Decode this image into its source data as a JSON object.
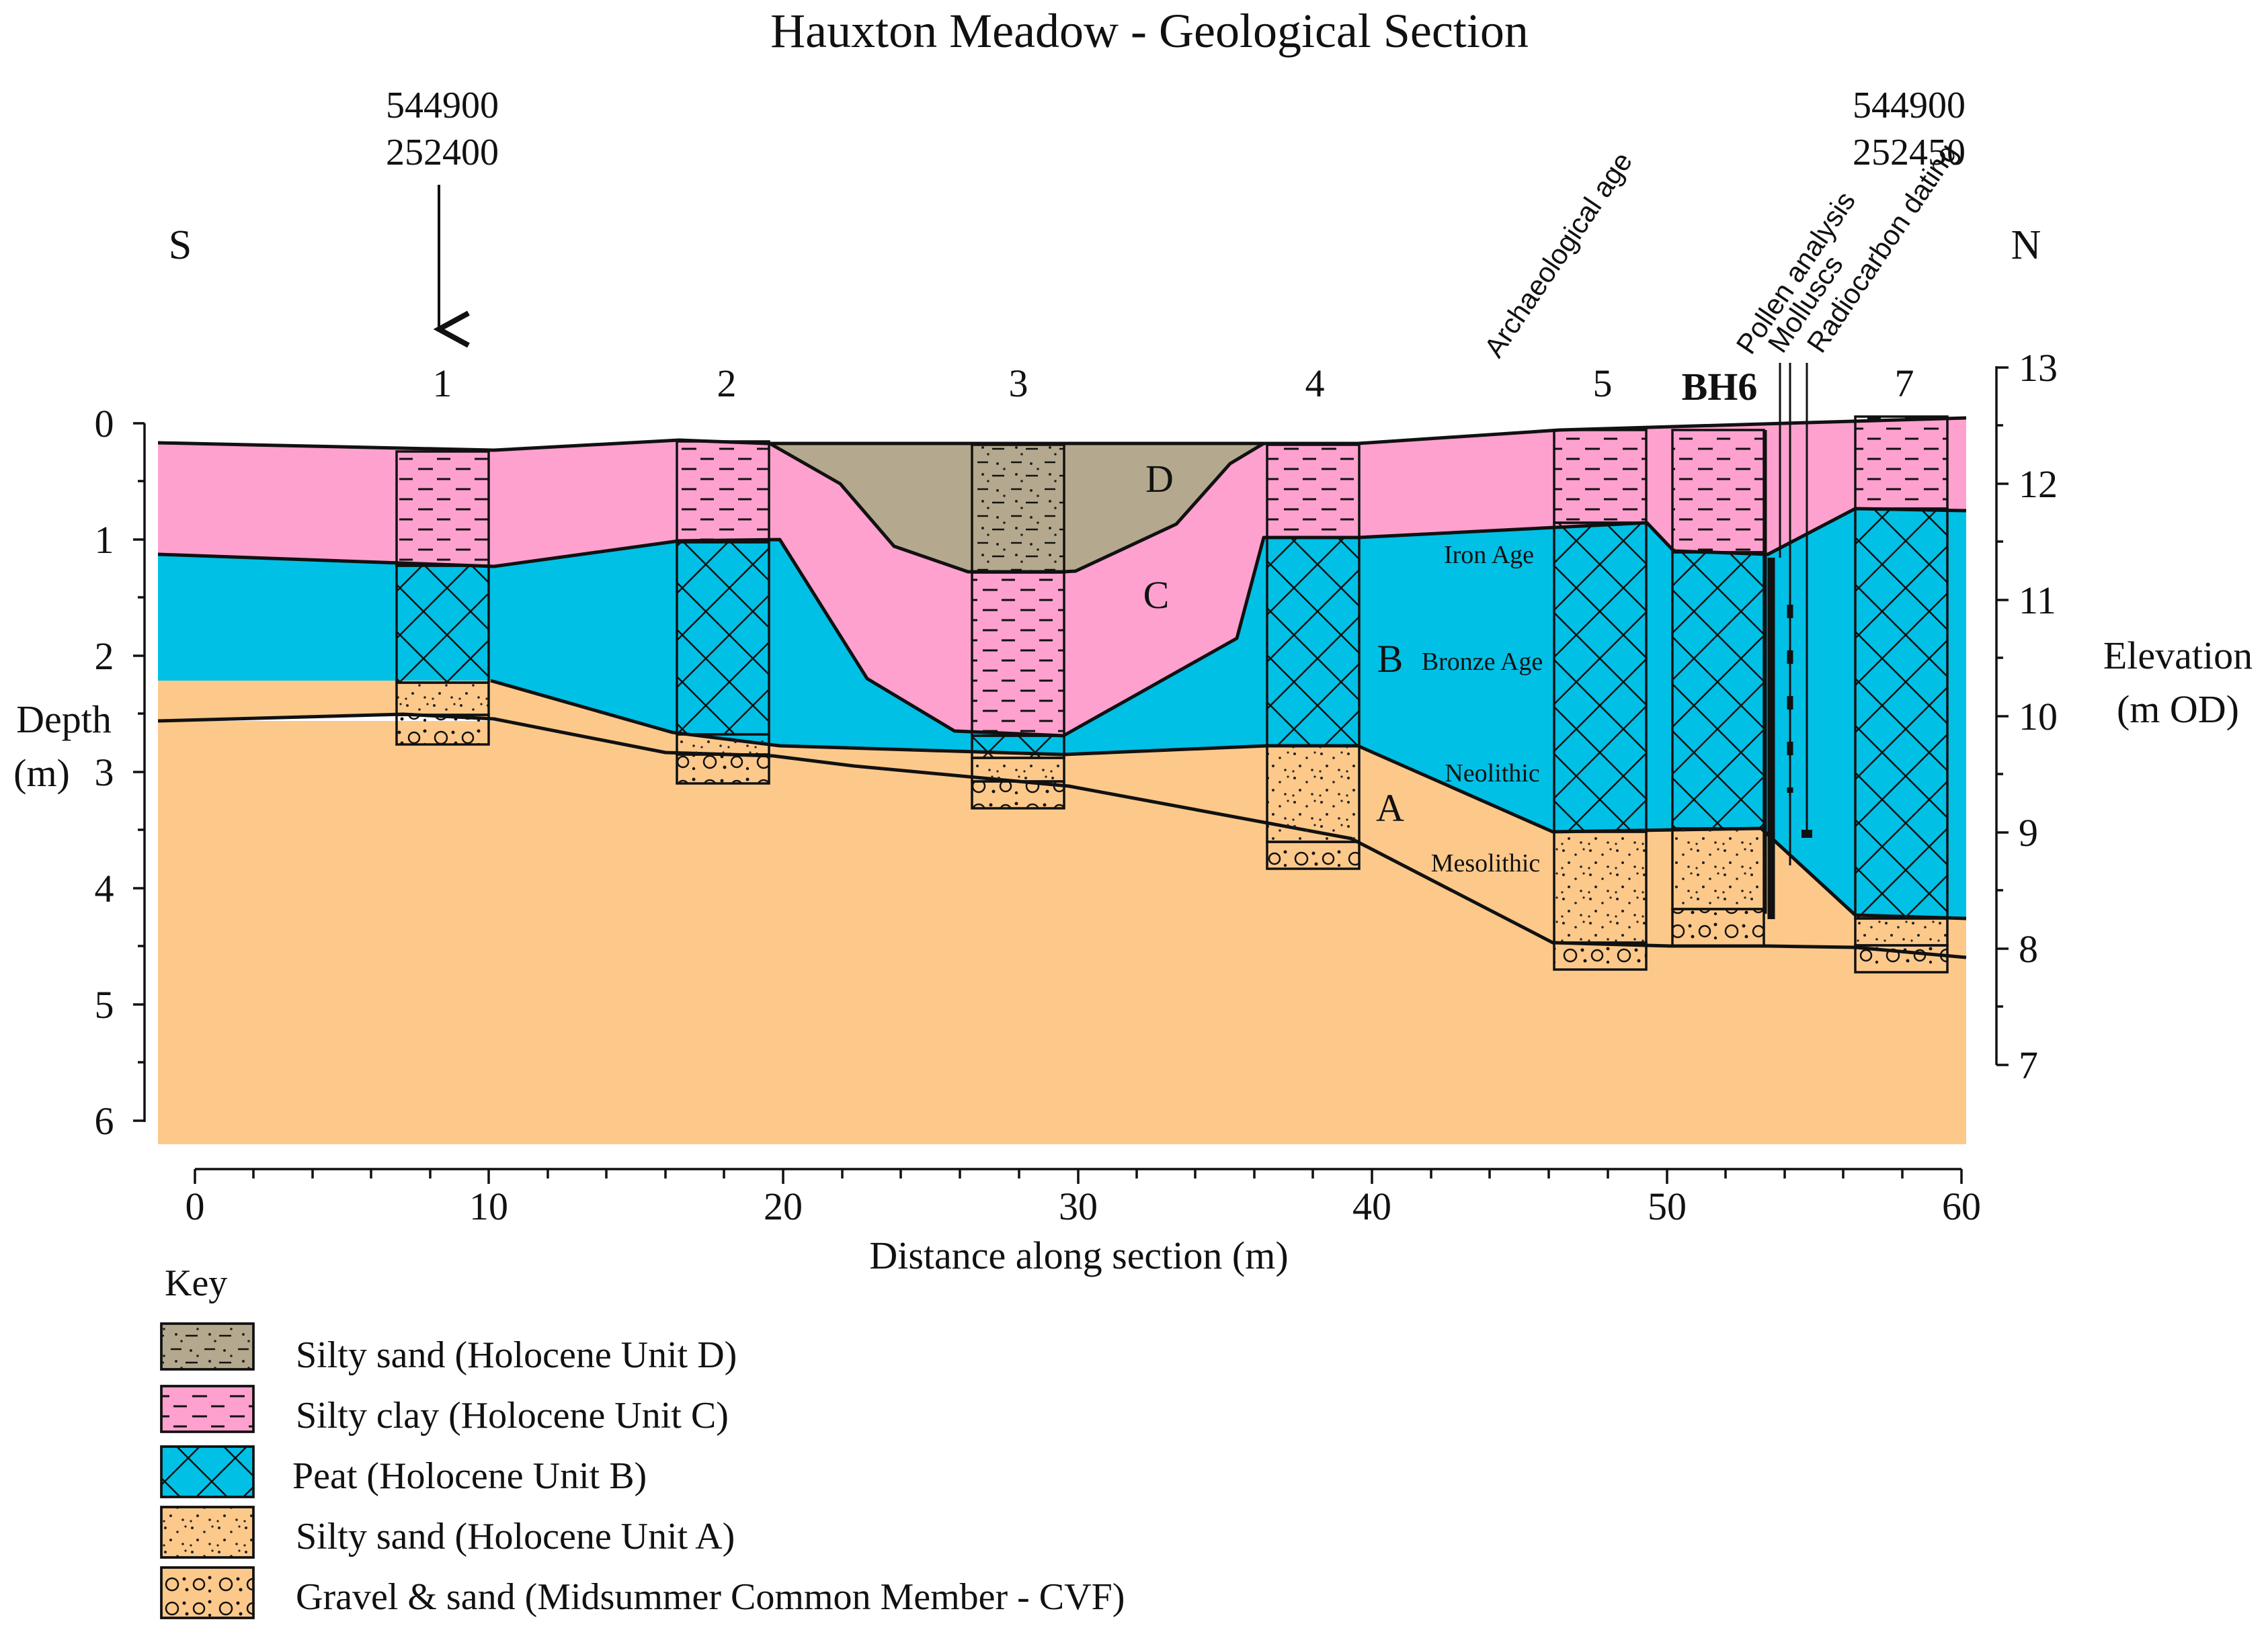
{
  "title": "Hauxton Meadow - Geological Section",
  "orientation": {
    "south": "S",
    "north": "N"
  },
  "grid_refs": {
    "left": {
      "easting": "544900",
      "northing": "252400"
    },
    "right": {
      "easting": "544900",
      "northing": "252450"
    }
  },
  "axes": {
    "depth_label_line1": "Depth",
    "depth_label_line2": "(m)",
    "depth_ticks": [
      "0",
      "1",
      "2",
      "3",
      "4",
      "5",
      "6"
    ],
    "elevation_label_line1": "Elevation",
    "elevation_label_line2": "(m OD)",
    "elevation_ticks": [
      "13",
      "12",
      "11",
      "10",
      "9",
      "8",
      "7"
    ],
    "distance_label": "Distance along section (m)",
    "distance_ticks": [
      "0",
      "10",
      "20",
      "30",
      "40",
      "50",
      "60"
    ]
  },
  "columns": [
    {
      "label": "1",
      "distance": 8.5
    },
    {
      "label": "2",
      "distance": 18
    },
    {
      "label": "3",
      "distance": 28
    },
    {
      "label": "4",
      "distance": 38
    },
    {
      "label": "5",
      "distance": 48
    },
    {
      "label": "BH6",
      "distance": 52
    },
    {
      "label": "7",
      "distance": 58
    }
  ],
  "unit_labels": {
    "D": "D",
    "C": "C",
    "B": "B",
    "A": "A"
  },
  "period_labels": {
    "iron_age": "Iron Age",
    "bronze_age": "Bronze Age",
    "neolithic": "Neolithic",
    "mesolithic": "Mesolithic"
  },
  "sample_labels": {
    "archaeological_age": "Archaeological age",
    "pollen": "Pollen analysis",
    "molluscs": "Molluscs",
    "radiocarbon": "Radiocarbon dating"
  },
  "key": {
    "heading": "Key",
    "items": [
      {
        "pattern": "unit-d",
        "label": "Silty sand (Holocene Unit D)"
      },
      {
        "pattern": "unit-c",
        "label": "Silty clay (Holocene Unit C)"
      },
      {
        "pattern": "unit-b",
        "label": "Peat (Holocene Unit B)"
      },
      {
        "pattern": "unit-a",
        "label": "Silty sand (Holocene Unit A)"
      },
      {
        "pattern": "gravel",
        "label": "Gravel & sand (Midsummer Common Member - CVF)"
      }
    ]
  },
  "colors": {
    "unit_d": "#b4a98e",
    "unit_c": "#ffa1cf",
    "unit_b": "#00c0e6",
    "unit_a": "#fcc98b",
    "gravel": "#fcc98b"
  }
}
